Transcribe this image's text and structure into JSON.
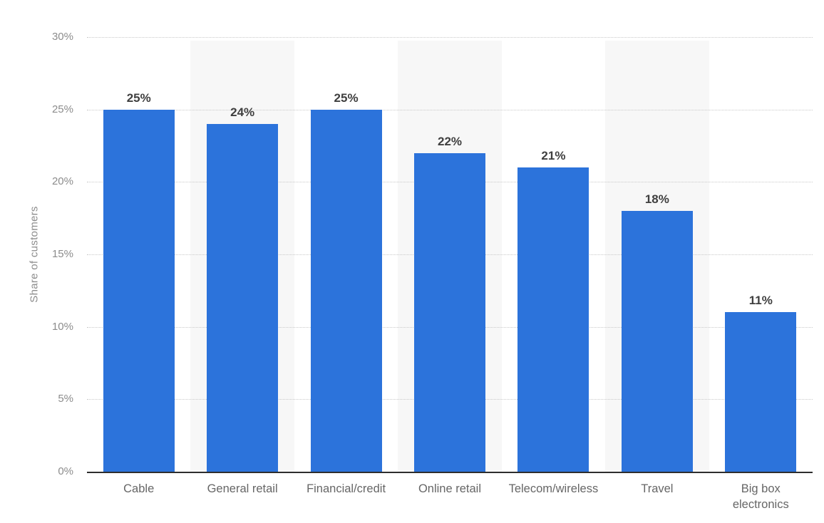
{
  "chart_data": {
    "type": "bar",
    "title": "",
    "xlabel": "",
    "ylabel": "Share of customers",
    "categories": [
      "Cable",
      "General retail",
      "Financial/credit",
      "Online retail",
      "Telecom/wireless",
      "Travel",
      "Big box electronics"
    ],
    "values": [
      25,
      24,
      25,
      22,
      21,
      18,
      11
    ],
    "value_labels": [
      "25%",
      "24%",
      "25%",
      "22%",
      "21%",
      "18%",
      "11%"
    ],
    "ylim": [
      0,
      30
    ],
    "ytick_step": 5,
    "ytick_labels": [
      "0%",
      "5%",
      "10%",
      "15%",
      "20%",
      "25%",
      "30%"
    ],
    "grid": "horizontal-dotted",
    "legend": "none",
    "striped_category_indexes": [
      1,
      3,
      5
    ],
    "colors": {
      "bar": "#2c73db",
      "column_stripe": "#f7f7f7",
      "gridline": "#c9c9c9",
      "axis_line": "#2e2e2e",
      "tick_label": "#8c8c8c",
      "category_label": "#666666",
      "value_label": "#3f3f3f",
      "background": "#ffffff"
    }
  }
}
